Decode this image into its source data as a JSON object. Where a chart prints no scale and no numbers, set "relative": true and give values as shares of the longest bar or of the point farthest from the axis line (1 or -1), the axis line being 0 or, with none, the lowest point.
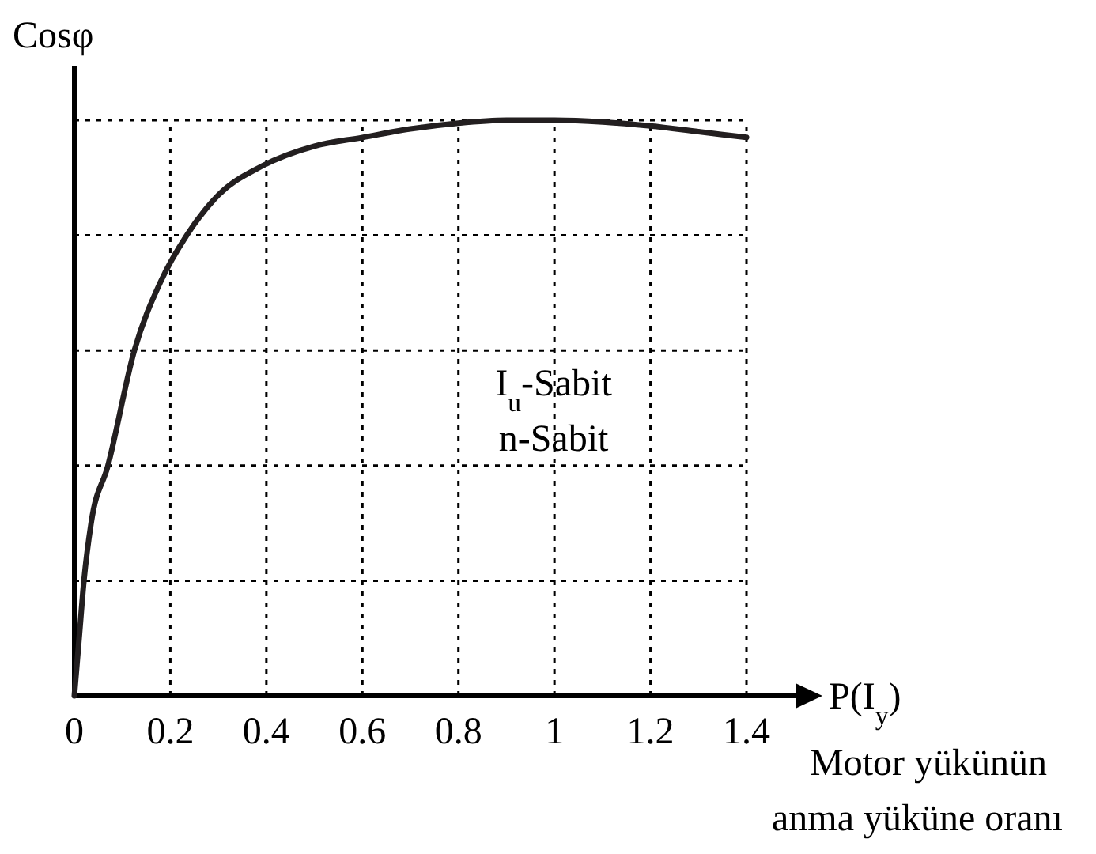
{
  "chart_data": {
    "type": "line",
    "relative": true,
    "xlabel": "P(I$_{y}$)",
    "ylabel": "Cosφ",
    "annotations": [
      "I$_{u}$-Sabit",
      "n-Sabit",
      "Motor yükünün anma yüküne oranı"
    ],
    "x": [
      0,
      0.01,
      0.02,
      0.035,
      0.07,
      0.125,
      0.18,
      0.234,
      0.3,
      0.39,
      0.5,
      0.6,
      0.7,
      0.8,
      0.9,
      1.0,
      1.1,
      1.2,
      1.3,
      1.4
    ],
    "series": [
      {
        "color": "#231f20",
        "values": [
          0,
          0.1,
          0.2,
          0.3,
          0.4,
          0.6,
          0.72,
          0.8,
          0.87,
          0.92,
          0.955,
          0.97,
          0.985,
          0.995,
          1,
          1,
          0.997,
          0.99,
          0.98,
          0.97
        ]
      }
    ],
    "xlim": [
      0,
      1.4
    ],
    "xticks": [
      0,
      0.2,
      0.4,
      0.6,
      0.8,
      1,
      1.2,
      1.4
    ],
    "grid": true,
    "line_style": "solid",
    "tick_labels": "x"
  }
}
